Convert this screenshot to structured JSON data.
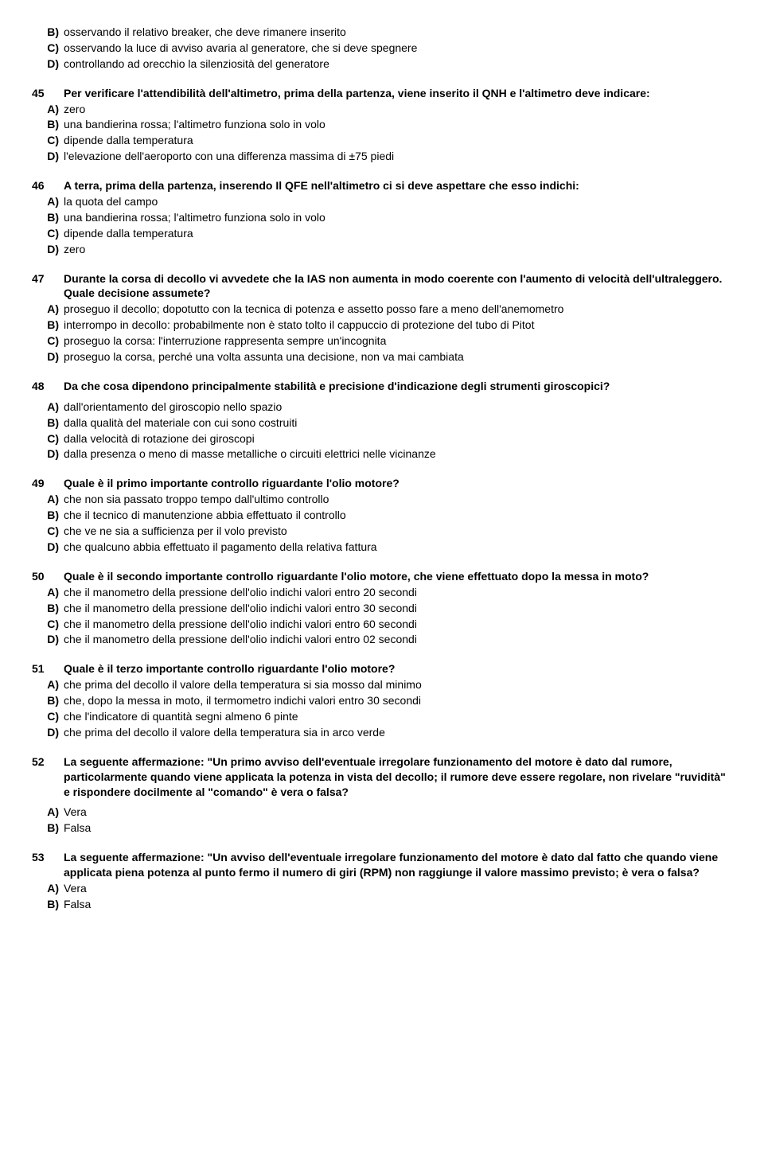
{
  "questions": [
    {
      "num": "",
      "text": "",
      "options": [
        {
          "label": "B)",
          "text": "osservando il relativo breaker, che deve rimanere inserito"
        },
        {
          "label": "C)",
          "text": "osservando la luce di avviso avaria al generatore, che si deve spegnere"
        },
        {
          "label": "D)",
          "text": "controllando ad orecchio la silenziosità del generatore"
        }
      ]
    },
    {
      "num": "45",
      "text": "Per verificare l'attendibilità dell'altimetro, prima della partenza, viene inserito il QNH e l'altimetro deve indicare:",
      "options": [
        {
          "label": "A)",
          "text": "zero"
        },
        {
          "label": "B)",
          "text": "una bandierina rossa; l'altimetro funziona solo in volo"
        },
        {
          "label": "C)",
          "text": "dipende dalla temperatura"
        },
        {
          "label": "D)",
          "text": "l'elevazione dell'aeroporto con una differenza massima di  ±75 piedi"
        }
      ]
    },
    {
      "num": "46",
      "text": "A terra, prima della partenza, inserendo Il QFE nell'altimetro ci si deve aspettare che esso indichi:",
      "options": [
        {
          "label": "A)",
          "text": "la quota del campo"
        },
        {
          "label": "B)",
          "text": "una bandierina rossa; l'altimetro funziona solo in volo"
        },
        {
          "label": "C)",
          "text": "dipende dalla temperatura"
        },
        {
          "label": "D)",
          "text": "zero"
        }
      ]
    },
    {
      "num": "47",
      "text": "Durante la corsa di decollo vi avvedete che la IAS non aumenta in modo coerente con l'aumento di velocità dell'ultraleggero. Quale decisione assumete?",
      "options": [
        {
          "label": "A)",
          "text": "proseguo il decollo; dopotutto con la tecnica di potenza e assetto posso fare a meno dell'anemometro"
        },
        {
          "label": "B)",
          "text": "interrompo in decollo: probabilmente non è stato tolto il cappuccio di protezione del tubo di Pitot"
        },
        {
          "label": "C)",
          "text": "proseguo la corsa: l'interruzione rappresenta sempre un'incognita"
        },
        {
          "label": "D)",
          "text": "proseguo la corsa, perché una volta assunta una decisione, non va mai cambiata"
        }
      ]
    },
    {
      "num": "48",
      "text": "Da che cosa dipendono principalmente stabilità e precisione d'indicazione degli strumenti giroscopici?",
      "gapAfterQuestion": true,
      "options": [
        {
          "label": "A)",
          "text": "dall'orientamento del giroscopio nello spazio"
        },
        {
          "label": "B)",
          "text": "dalla qualità del materiale con cui sono costruiti"
        },
        {
          "label": "C)",
          "text": "dalla velocità di rotazione dei giroscopi"
        },
        {
          "label": "D)",
          "text": "dalla presenza o meno di masse metalliche o circuiti elettrici nelle vicinanze"
        }
      ]
    },
    {
      "num": "49",
      "text": "Quale è il primo importante controllo riguardante l'olio motore?",
      "options": [
        {
          "label": "A)",
          "text": "che non sia passato troppo tempo dall'ultimo controllo"
        },
        {
          "label": "B)",
          "text": "che il tecnico di manutenzione abbia effettuato il controllo"
        },
        {
          "label": "C)",
          "text": "che ve ne sia a sufficienza per il volo previsto"
        },
        {
          "label": "D)",
          "text": "che qualcuno abbia effettuato il pagamento della relativa fattura"
        }
      ]
    },
    {
      "num": "50",
      "text": "Quale è il secondo importante controllo riguardante l'olio motore, che viene effettuato dopo la messa in moto?",
      "options": [
        {
          "label": "A)",
          "text": "che il manometro della pressione dell'olio indichi valori entro 20 secondi"
        },
        {
          "label": "B)",
          "text": "che il manometro della pressione dell'olio indichi valori entro 30 secondi"
        },
        {
          "label": "C)",
          "text": "che il manometro della pressione dell'olio indichi valori entro 60 secondi"
        },
        {
          "label": "D)",
          "text": "che il manometro della pressione dell'olio indichi valori entro 02 secondi"
        }
      ]
    },
    {
      "num": "51",
      "text": "Quale è il terzo importante controllo riguardante l'olio motore?",
      "options": [
        {
          "label": "A)",
          "text": "che prima del decollo il valore della temperatura si sia mosso dal minimo"
        },
        {
          "label": "B)",
          "text": "che, dopo la messa in moto, il termometro indichi valori entro 30 secondi"
        },
        {
          "label": "C)",
          "text": "che l'indicatore di quantità segni almeno 6 pinte"
        },
        {
          "label": "D)",
          "text": "che prima del decollo il valore della temperatura sia in arco verde"
        }
      ]
    },
    {
      "num": "52",
      "text": "La seguente affermazione: \"Un primo avviso dell'eventuale irregolare funzionamento del motore è dato dal rumore, particolarmente quando viene applicata la potenza in vista del decollo; il rumore deve essere regolare, non rivelare \"ruvidità\" e rispondere docilmente al \"comando\" è vera o falsa?",
      "gapAfterQuestion": true,
      "options": [
        {
          "label": "A)",
          "text": "Vera"
        },
        {
          "label": "B)",
          "text": "Falsa"
        }
      ]
    },
    {
      "num": "53",
      "text": "La seguente affermazione: \"Un avviso dell'eventuale irregolare funzionamento del motore è dato dal fatto che quando viene applicata piena potenza al punto fermo il numero di giri (RPM) non raggiunge il valore massimo previsto; è vera o falsa?",
      "options": [
        {
          "label": "A)",
          "text": "Vera"
        },
        {
          "label": "B)",
          "text": "Falsa"
        }
      ]
    }
  ]
}
